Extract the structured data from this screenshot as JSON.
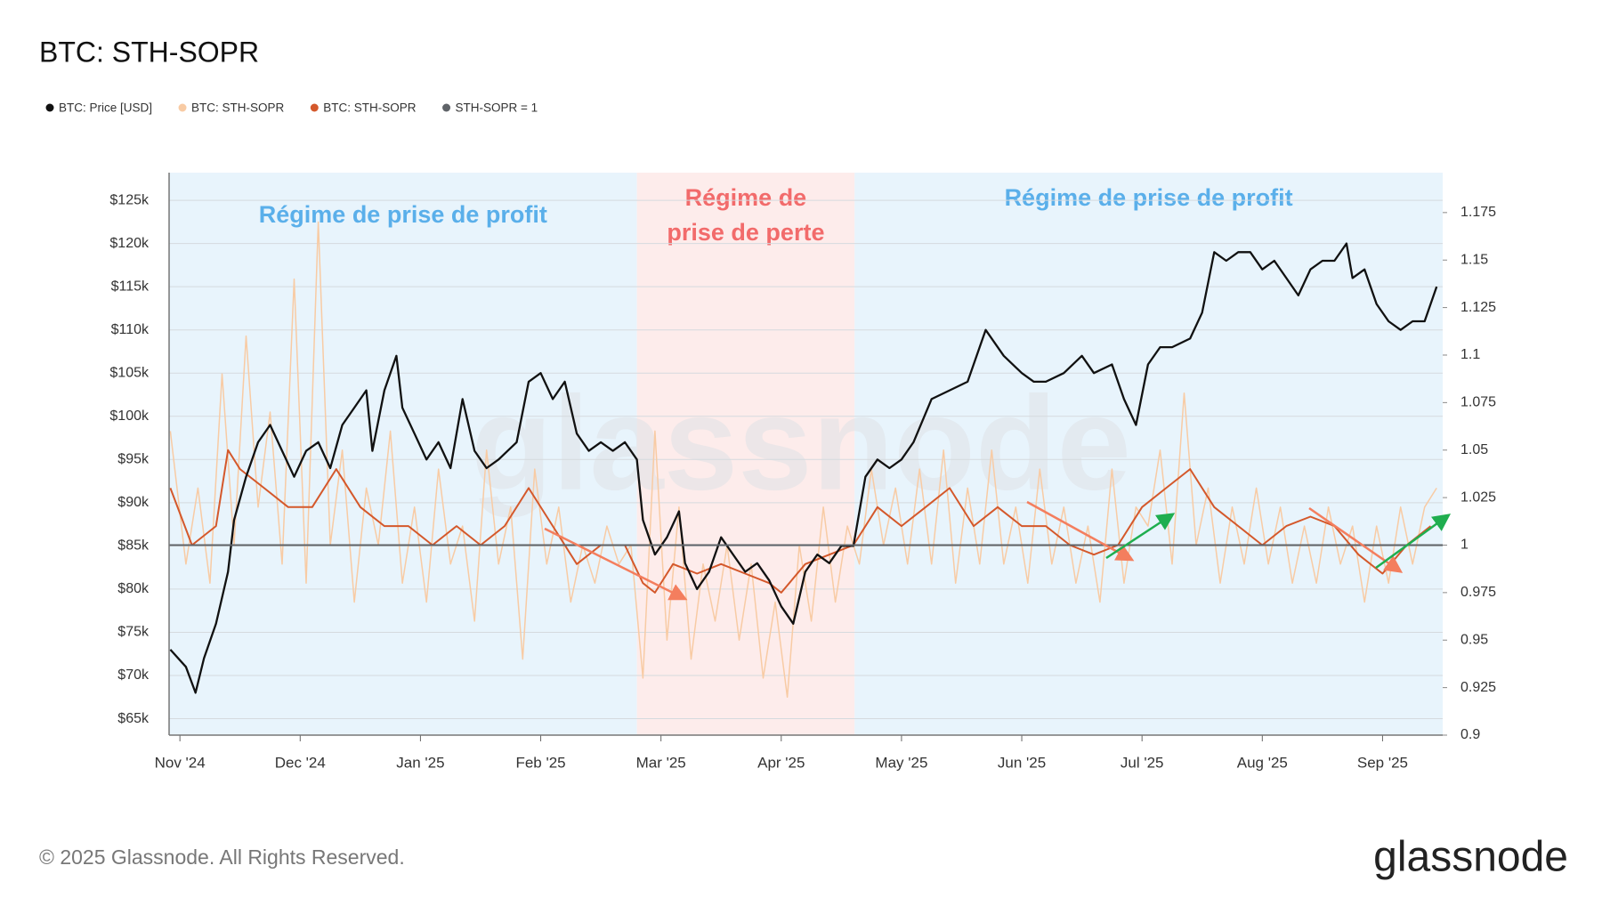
{
  "chart_data": {
    "type": "line",
    "title": "BTC: STH-SOPR",
    "watermark": "glassnode",
    "logo": "glassnode",
    "copyright": "© 2025 Glassnode. All Rights Reserved.",
    "xlim": [
      -0.09,
      10.5
    ],
    "xticks": [
      {
        "value": 0,
        "label": "Nov '24"
      },
      {
        "value": 1,
        "label": "Dec '24"
      },
      {
        "value": 2,
        "label": "Jan '25"
      },
      {
        "value": 3,
        "label": "Feb '25"
      },
      {
        "value": 4,
        "label": "Mar '25"
      },
      {
        "value": 5,
        "label": "Apr '25"
      },
      {
        "value": 6,
        "label": "May '25"
      },
      {
        "value": 7,
        "label": "Jun '25"
      },
      {
        "value": 8,
        "label": "Jul '25"
      },
      {
        "value": 9,
        "label": "Aug '25"
      },
      {
        "value": 10,
        "label": "Sep '25"
      }
    ],
    "ylim": [
      63100,
      128200
    ],
    "yticks": [
      {
        "value": 65000,
        "label": "$65k"
      },
      {
        "value": 70000,
        "label": "$70k"
      },
      {
        "value": 75000,
        "label": "$75k"
      },
      {
        "value": 80000,
        "label": "$80k"
      },
      {
        "value": 85000,
        "label": "$85k"
      },
      {
        "value": 90000,
        "label": "$90k"
      },
      {
        "value": 95000,
        "label": "$95k"
      },
      {
        "value": 100000,
        "label": "$100k"
      },
      {
        "value": 105000,
        "label": "$105k"
      },
      {
        "value": 110000,
        "label": "$110k"
      },
      {
        "value": 115000,
        "label": "$115k"
      },
      {
        "value": 120000,
        "label": "$120k"
      },
      {
        "value": 125000,
        "label": "$125k"
      }
    ],
    "y2lim": [
      0.9,
      1.196
    ],
    "y2ticks": [
      0.9,
      0.925,
      0.95,
      0.975,
      1,
      1.025,
      1.05,
      1.075,
      1.1,
      1.125,
      1.15,
      1.175
    ],
    "grid": true,
    "regions": [
      {
        "label": [
          "Régime de prise de profit"
        ],
        "x": [
          -0.09,
          3.8
        ],
        "color": "#e8f4fc",
        "text_color": "#5aafea"
      },
      {
        "label": [
          "Régime de",
          "prise de perte"
        ],
        "x": [
          3.8,
          5.61
        ],
        "color": "#fdeceb",
        "text_color": "#f26b6b"
      },
      {
        "label": [
          "Régime de prise de profit"
        ],
        "x": [
          5.61,
          10.5
        ],
        "color": "#e8f4fc",
        "text_color": "#5aafea"
      }
    ],
    "series": [
      {
        "name": "BTC: STH-SOPR",
        "color": "#f8cba4",
        "axis": "y2",
        "width": 1.5,
        "x": [
          -0.08,
          0.05,
          0.15,
          0.25,
          0.35,
          0.45,
          0.55,
          0.65,
          0.75,
          0.85,
          0.95,
          1.05,
          1.15,
          1.25,
          1.35,
          1.45,
          1.55,
          1.65,
          1.75,
          1.85,
          1.95,
          2.05,
          2.15,
          2.25,
          2.35,
          2.45,
          2.55,
          2.65,
          2.75,
          2.85,
          2.95,
          3.05,
          3.15,
          3.25,
          3.35,
          3.45,
          3.55,
          3.65,
          3.75,
          3.85,
          3.95,
          4.05,
          4.15,
          4.25,
          4.35,
          4.45,
          4.55,
          4.65,
          4.75,
          4.85,
          4.95,
          5.05,
          5.15,
          5.25,
          5.35,
          5.45,
          5.55,
          5.65,
          5.75,
          5.85,
          5.95,
          6.05,
          6.15,
          6.25,
          6.35,
          6.45,
          6.55,
          6.65,
          6.75,
          6.85,
          6.95,
          7.05,
          7.15,
          7.25,
          7.35,
          7.45,
          7.55,
          7.65,
          7.75,
          7.85,
          7.95,
          8.05,
          8.15,
          8.25,
          8.35,
          8.45,
          8.55,
          8.65,
          8.75,
          8.85,
          8.95,
          9.05,
          9.15,
          9.25,
          9.35,
          9.45,
          9.55,
          9.65,
          9.75,
          9.85,
          9.95,
          10.05,
          10.15,
          10.25,
          10.35,
          10.45
        ],
        "values": [
          1.06,
          0.99,
          1.03,
          0.98,
          1.09,
          1.0,
          1.11,
          1.02,
          1.07,
          0.99,
          1.14,
          0.98,
          1.17,
          1.0,
          1.05,
          0.97,
          1.03,
          1.0,
          1.06,
          0.98,
          1.02,
          0.97,
          1.04,
          0.99,
          1.01,
          0.96,
          1.05,
          0.99,
          1.02,
          0.94,
          1.04,
          0.99,
          1.02,
          0.97,
          1.0,
          0.98,
          1.01,
          0.99,
          1.0,
          0.93,
          1.06,
          0.95,
          1.02,
          0.94,
          0.99,
          0.96,
          1.0,
          0.95,
          0.99,
          0.93,
          0.97,
          0.92,
          1.0,
          0.96,
          1.02,
          0.97,
          1.01,
          0.99,
          1.04,
          1.0,
          1.03,
          0.99,
          1.04,
          0.99,
          1.05,
          0.98,
          1.03,
          0.99,
          1.05,
          0.99,
          1.02,
          0.98,
          1.04,
          0.99,
          1.02,
          0.98,
          1.01,
          0.97,
          1.04,
          0.98,
          1.02,
          1.01,
          1.05,
          0.99,
          1.08,
          1.0,
          1.03,
          0.98,
          1.02,
          0.99,
          1.03,
          0.99,
          1.02,
          0.98,
          1.01,
          0.98,
          1.02,
          0.99,
          1.01,
          0.97,
          1.01,
          0.98,
          1.02,
          0.99,
          1.02,
          1.03
        ]
      },
      {
        "name": "BTC: STH-SOPR",
        "color": "#d4582b",
        "axis": "y2",
        "width": 2,
        "x": [
          -0.08,
          0.1,
          0.3,
          0.4,
          0.5,
          0.7,
          0.9,
          1.1,
          1.3,
          1.5,
          1.7,
          1.9,
          2.1,
          2.3,
          2.5,
          2.7,
          2.9,
          3.1,
          3.3,
          3.5,
          3.7,
          3.85,
          3.95,
          4.1,
          4.3,
          4.5,
          4.7,
          4.9,
          5.0,
          5.2,
          5.4,
          5.6,
          5.8,
          6.0,
          6.2,
          6.4,
          6.6,
          6.8,
          7.0,
          7.2,
          7.4,
          7.6,
          7.8,
          8.0,
          8.2,
          8.4,
          8.6,
          8.8,
          9.0,
          9.2,
          9.4,
          9.6,
          9.8,
          10.0,
          10.2,
          10.4
        ],
        "values": [
          1.03,
          1.0,
          1.01,
          1.05,
          1.04,
          1.03,
          1.02,
          1.02,
          1.04,
          1.02,
          1.01,
          1.01,
          1.0,
          1.01,
          1.0,
          1.01,
          1.03,
          1.01,
          0.99,
          1.0,
          1.0,
          0.98,
          0.975,
          0.99,
          0.985,
          0.99,
          0.985,
          0.98,
          0.975,
          0.99,
          0.995,
          1.0,
          1.02,
          1.01,
          1.02,
          1.03,
          1.01,
          1.02,
          1.01,
          1.01,
          1.0,
          0.995,
          1.0,
          1.02,
          1.03,
          1.04,
          1.02,
          1.01,
          1.0,
          1.01,
          1.015,
          1.01,
          0.995,
          0.985,
          1.0,
          1.01
        ]
      },
      {
        "name": "BTC: Price [USD]",
        "color": "#111111",
        "axis": "y",
        "width": 2.3,
        "x": [
          -0.08,
          0.05,
          0.13,
          0.2,
          0.3,
          0.4,
          0.45,
          0.55,
          0.65,
          0.75,
          0.85,
          0.95,
          1.05,
          1.15,
          1.25,
          1.35,
          1.45,
          1.55,
          1.6,
          1.7,
          1.8,
          1.85,
          1.95,
          2.05,
          2.15,
          2.25,
          2.35,
          2.45,
          2.55,
          2.65,
          2.8,
          2.9,
          3.0,
          3.1,
          3.2,
          3.3,
          3.4,
          3.5,
          3.6,
          3.7,
          3.8,
          3.85,
          3.95,
          4.05,
          4.15,
          4.2,
          4.3,
          4.4,
          4.5,
          4.6,
          4.7,
          4.8,
          4.9,
          5.0,
          5.1,
          5.2,
          5.3,
          5.4,
          5.5,
          5.6,
          5.7,
          5.8,
          5.9,
          6.0,
          6.1,
          6.25,
          6.4,
          6.55,
          6.7,
          6.85,
          7.0,
          7.1,
          7.2,
          7.35,
          7.5,
          7.6,
          7.75,
          7.85,
          7.95,
          8.05,
          8.15,
          8.25,
          8.4,
          8.5,
          8.6,
          8.7,
          8.8,
          8.9,
          9.0,
          9.1,
          9.2,
          9.3,
          9.4,
          9.5,
          9.6,
          9.7,
          9.75,
          9.85,
          9.95,
          10.05,
          10.15,
          10.25,
          10.35,
          10.45
        ],
        "values": [
          73000,
          71000,
          68000,
          72000,
          76000,
          82000,
          88000,
          93000,
          97000,
          99000,
          96000,
          93000,
          96000,
          97000,
          94000,
          99000,
          101000,
          103000,
          96000,
          103000,
          107000,
          101000,
          98000,
          95000,
          97000,
          94000,
          102000,
          96000,
          94000,
          95000,
          97000,
          104000,
          105000,
          102000,
          104000,
          98000,
          96000,
          97000,
          96000,
          97000,
          95000,
          88000,
          84000,
          86000,
          89000,
          83000,
          80000,
          82000,
          86000,
          84000,
          82000,
          83000,
          81000,
          78000,
          76000,
          82000,
          84000,
          83000,
          85000,
          85000,
          93000,
          95000,
          94000,
          95000,
          97000,
          102000,
          103000,
          104000,
          110000,
          107000,
          105000,
          104000,
          104000,
          105000,
          107000,
          105000,
          106000,
          102000,
          99000,
          106000,
          108000,
          108000,
          109000,
          112000,
          119000,
          118000,
          119000,
          119000,
          117000,
          118000,
          116000,
          114000,
          117000,
          118000,
          118000,
          120000,
          116000,
          117000,
          113000,
          111000,
          110000,
          111000,
          111000,
          115000
        ]
      },
      {
        "name": "STH-SOPR = 1",
        "color": "#5f6368",
        "axis": "y2",
        "width": 2,
        "x": [
          -0.09,
          10.5
        ],
        "values": [
          1,
          1
        ]
      }
    ],
    "legend_order": [
      2,
      0,
      1,
      3
    ]
  }
}
